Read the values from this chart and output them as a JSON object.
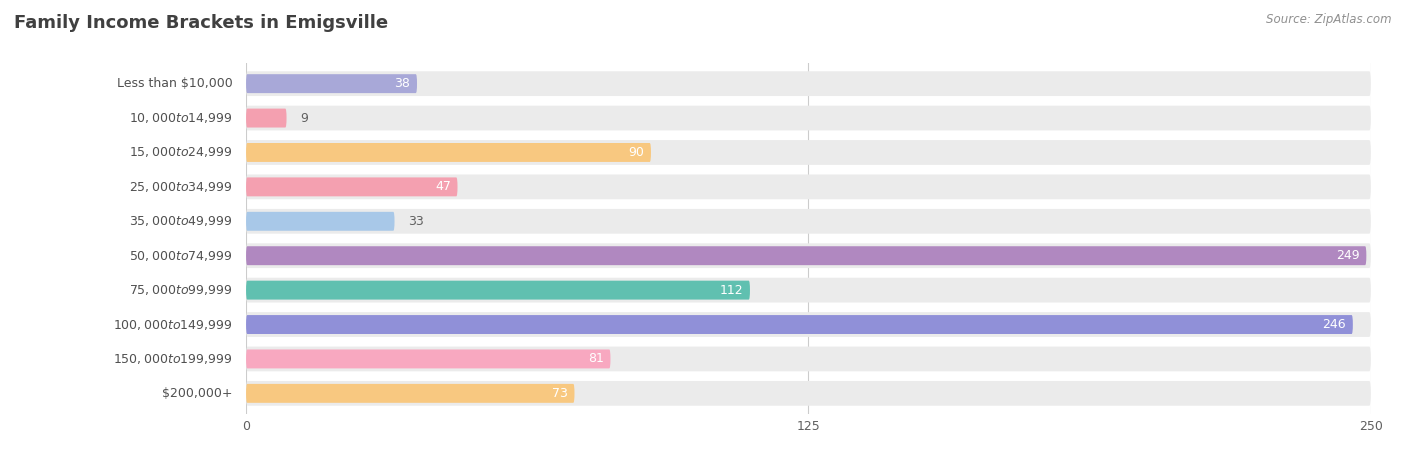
{
  "title": "Family Income Brackets in Emigsville",
  "source": "Source: ZipAtlas.com",
  "categories": [
    "Less than $10,000",
    "$10,000 to $14,999",
    "$15,000 to $24,999",
    "$25,000 to $34,999",
    "$35,000 to $49,999",
    "$50,000 to $74,999",
    "$75,000 to $99,999",
    "$100,000 to $149,999",
    "$150,000 to $199,999",
    "$200,000+"
  ],
  "values": [
    38,
    9,
    90,
    47,
    33,
    249,
    112,
    246,
    81,
    73
  ],
  "colors": [
    "#a8a8d8",
    "#f4a0b0",
    "#f8c880",
    "#f4a0b0",
    "#a8c8e8",
    "#b088c0",
    "#60c0b0",
    "#9090d8",
    "#f8a8c0",
    "#f8c880"
  ],
  "xlim": [
    0,
    250
  ],
  "xticks": [
    0,
    125,
    250
  ],
  "background_color": "#ffffff",
  "bar_bg_color": "#ebebeb",
  "title_color": "#404040",
  "label_color": "#505050",
  "value_color_inside": "#ffffff",
  "value_color_outside": "#606060",
  "title_fontsize": 13,
  "label_fontsize": 9,
  "value_fontsize": 9
}
